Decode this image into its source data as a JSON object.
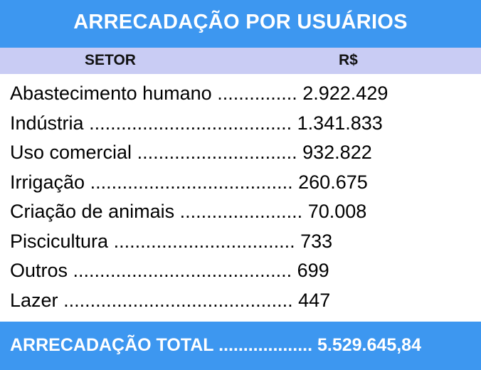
{
  "title": "ARRECADAÇÃO POR USUÁRIOS",
  "header": {
    "setor": "SETOR",
    "valor": "R$"
  },
  "rows": [
    {
      "setor": "Abastecimento humano",
      "dots": "...............",
      "valor": "2.922.429"
    },
    {
      "setor": "Indústria",
      "dots": "......................................",
      "valor": "1.341.833"
    },
    {
      "setor": "Uso comercial",
      "dots": "..............................",
      "valor": "932.822"
    },
    {
      "setor": "Irrigação",
      "dots": "......................................",
      "valor": "260.675"
    },
    {
      "setor": "Criação de animais",
      "dots": ".......................",
      "valor": "70.008"
    },
    {
      "setor": "Piscicultura",
      "dots": "..................................",
      "valor": "733"
    },
    {
      "setor": "Outros",
      "dots": ".........................................",
      "valor": "699"
    },
    {
      "setor": "Lazer",
      "dots": "...........................................",
      "valor": "447"
    }
  ],
  "total": {
    "label": "ARRECADAÇÃO TOTAL",
    "dots": "...................",
    "valor": "5.529.645,84"
  },
  "colors": {
    "accent": "#3d97f0",
    "header_bg": "#c9ccf4"
  }
}
